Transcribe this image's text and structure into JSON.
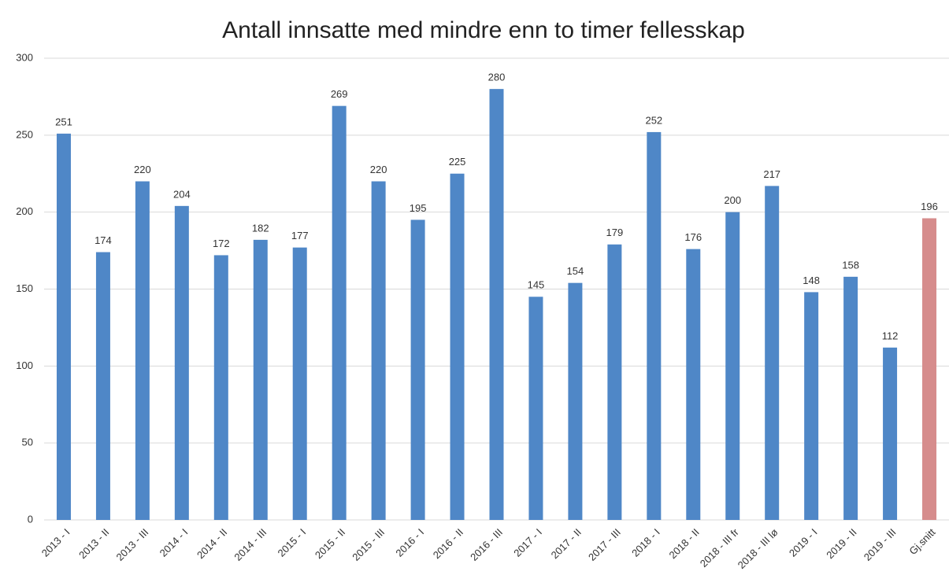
{
  "chart_data": {
    "type": "bar",
    "title": "Antall innsatte med mindre enn to timer fellesskap",
    "categories": [
      "2013 - I",
      "2013 - II",
      "2013 - III",
      "2014 - I",
      "2014 - II",
      "2014 - III",
      "2015 - I",
      "2015 - II",
      "2015 - III",
      "2016 - I",
      "2016 - II",
      "2016 - III",
      "2017 - I",
      "2017 - II",
      "2017 - III",
      "2018 - I",
      "2018 - II",
      "2018 - III fr",
      "2018 - III lø",
      "2019 - I",
      "2019 - II",
      "2019 - III",
      "Gj.snitt"
    ],
    "values": [
      251,
      174,
      220,
      204,
      172,
      182,
      177,
      269,
      220,
      195,
      225,
      280,
      145,
      154,
      179,
      252,
      176,
      200,
      217,
      148,
      158,
      112,
      196
    ],
    "colors": [
      "#4f87c7",
      "#4f87c7",
      "#4f87c7",
      "#4f87c7",
      "#4f87c7",
      "#4f87c7",
      "#4f87c7",
      "#4f87c7",
      "#4f87c7",
      "#4f87c7",
      "#4f87c7",
      "#4f87c7",
      "#4f87c7",
      "#4f87c7",
      "#4f87c7",
      "#4f87c7",
      "#4f87c7",
      "#4f87c7",
      "#4f87c7",
      "#4f87c7",
      "#4f87c7",
      "#4f87c7",
      "#d68c8c"
    ],
    "ylim": [
      0,
      300
    ],
    "yticks": [
      0,
      50,
      100,
      150,
      200,
      250,
      300
    ],
    "grid": true
  }
}
